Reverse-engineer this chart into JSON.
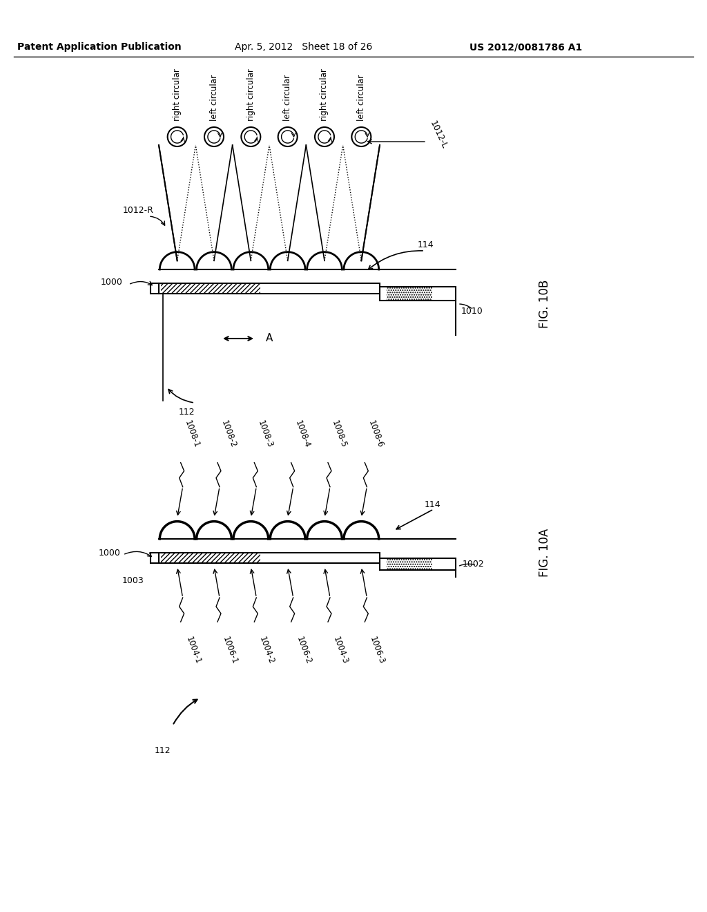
{
  "header_left": "Patent Application Publication",
  "header_center": "Apr. 5, 2012   Sheet 18 of 26",
  "header_right": "US 2012/0081786 A1",
  "fig10b_label": "FIG. 10B",
  "fig10a_label": "FIG. 10A",
  "background": "#ffffff"
}
